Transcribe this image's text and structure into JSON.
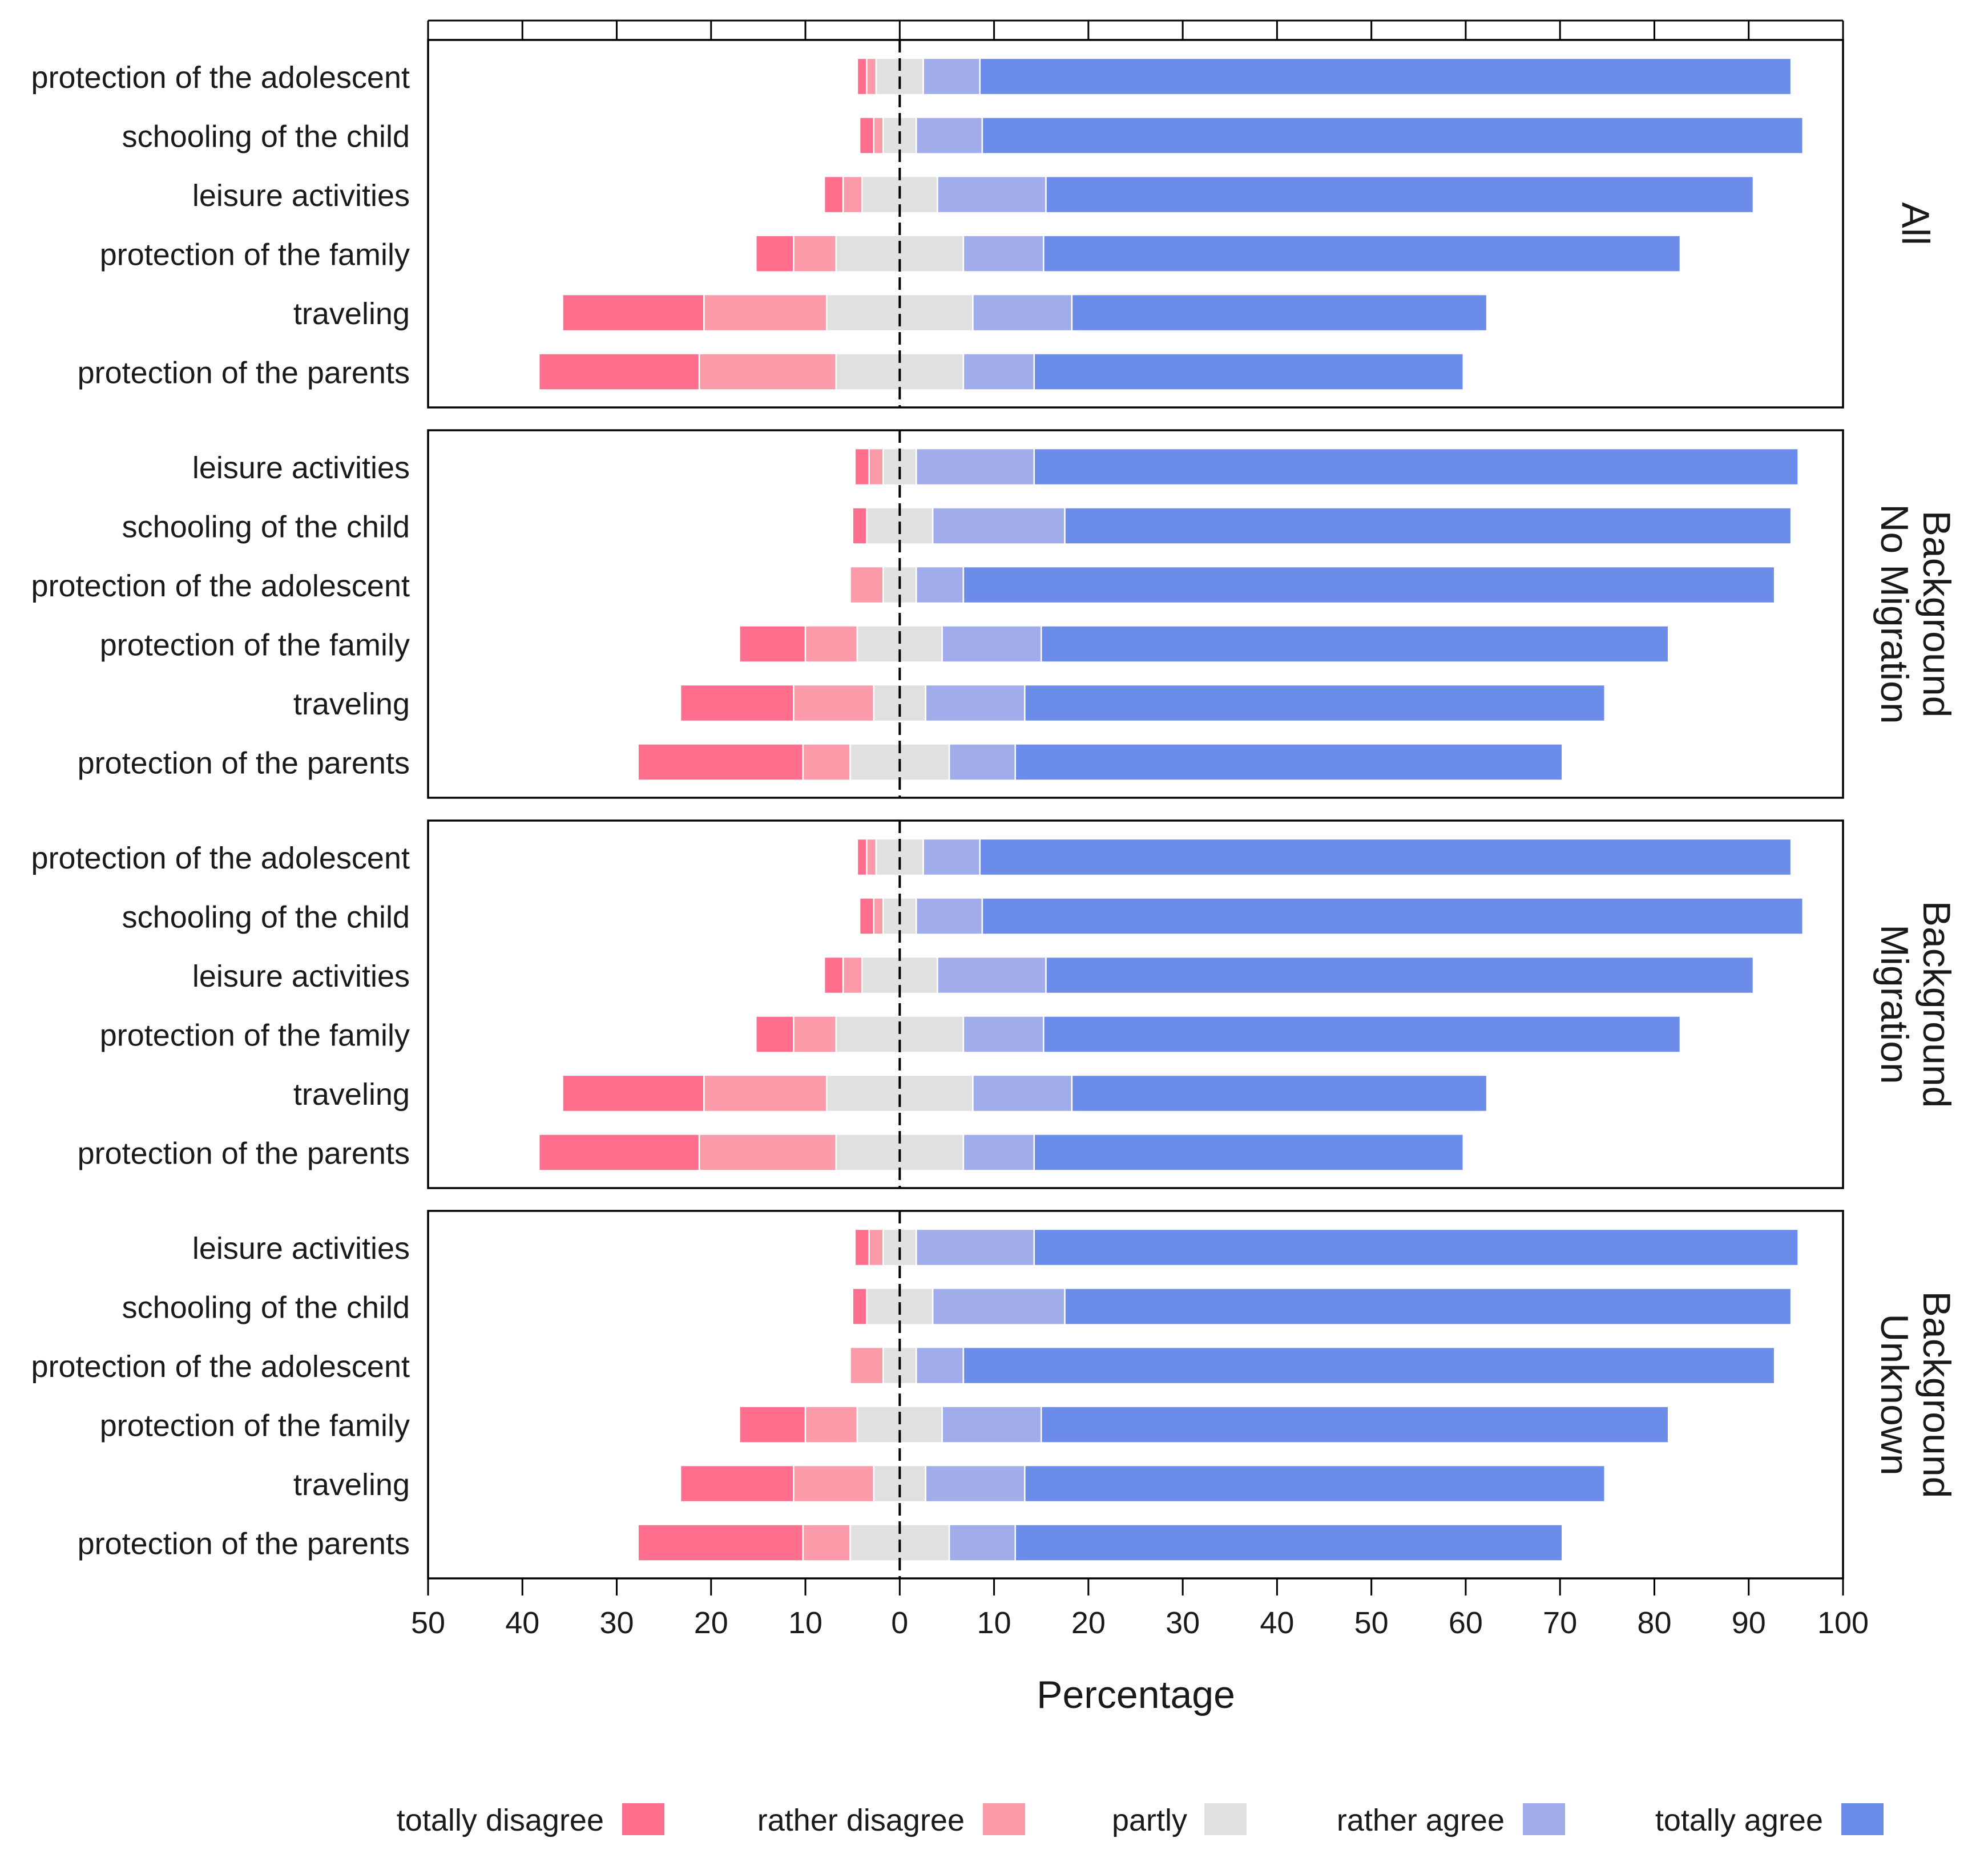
{
  "chart_data": {
    "type": "bar",
    "subtype": "diverging-stacked-horizontal",
    "xlabel": "Percentage",
    "xlim": [
      -50,
      100
    ],
    "xticks": [
      -50,
      -40,
      -30,
      -20,
      -10,
      0,
      10,
      20,
      30,
      40,
      50,
      60,
      70,
      80,
      90,
      100
    ],
    "xtick_labels": [
      "50",
      "40",
      "30",
      "20",
      "10",
      "0",
      "10",
      "20",
      "30",
      "40",
      "50",
      "60",
      "70",
      "80",
      "90",
      "100"
    ],
    "legend_position": "bottom",
    "categories": [
      "totally disagree",
      "rather disagree",
      "partly",
      "rather agree",
      "totally agree"
    ],
    "colors": {
      "totally disagree": "#ff6f8d",
      "rather disagree": "#fb9aa9",
      "partly": "#e0e0e0",
      "rather agree": "#a1adeb",
      "totally agree": "#6c8ce9"
    },
    "panels": [
      {
        "label": "All",
        "rows": [
          {
            "label": "protection of the adolescent",
            "values": [
              1.0,
              1.0,
              5.0,
              6.0,
              86.0
            ]
          },
          {
            "label": "schooling of the child",
            "values": [
              1.5,
              1.0,
              3.5,
              7.0,
              87.0
            ]
          },
          {
            "label": "leisure activities",
            "values": [
              2.0,
              2.0,
              8.0,
              11.5,
              75.0
            ]
          },
          {
            "label": "protection of the family",
            "values": [
              4.0,
              4.5,
              13.5,
              8.5,
              67.5
            ]
          },
          {
            "label": "traveling",
            "values": [
              15.0,
              13.0,
              15.5,
              10.5,
              44.0
            ]
          },
          {
            "label": "protection of the parents",
            "values": [
              17.0,
              14.5,
              13.5,
              7.5,
              45.5
            ]
          }
        ]
      },
      {
        "label": "No Migration Background",
        "rows": [
          {
            "label": "leisure activities",
            "values": [
              1.5,
              1.5,
              3.5,
              12.5,
              81.0
            ]
          },
          {
            "label": "schooling of the child",
            "values": [
              1.5,
              0.0,
              7.0,
              14.0,
              77.0
            ]
          },
          {
            "label": "protection of the adolescent",
            "values": [
              0.0,
              3.5,
              3.5,
              5.0,
              86.0
            ]
          },
          {
            "label": "protection of the family",
            "values": [
              7.0,
              5.5,
              9.0,
              10.5,
              66.5
            ]
          },
          {
            "label": "traveling",
            "values": [
              12.0,
              8.5,
              5.5,
              10.5,
              61.5
            ]
          },
          {
            "label": "protection of the parents",
            "values": [
              17.5,
              5.0,
              10.5,
              7.0,
              58.0
            ]
          }
        ]
      },
      {
        "label": "Migration Background",
        "rows": [
          {
            "label": "protection of the adolescent",
            "values": [
              1.0,
              1.0,
              5.0,
              6.0,
              86.0
            ]
          },
          {
            "label": "schooling of the child",
            "values": [
              1.5,
              1.0,
              3.5,
              7.0,
              87.0
            ]
          },
          {
            "label": "leisure activities",
            "values": [
              2.0,
              2.0,
              8.0,
              11.5,
              75.0
            ]
          },
          {
            "label": "protection of the family",
            "values": [
              4.0,
              4.5,
              13.5,
              8.5,
              67.5
            ]
          },
          {
            "label": "traveling",
            "values": [
              15.0,
              13.0,
              15.5,
              10.5,
              44.0
            ]
          },
          {
            "label": "protection of the parents",
            "values": [
              17.0,
              14.5,
              13.5,
              7.5,
              45.5
            ]
          }
        ]
      },
      {
        "label": "Unknown Background",
        "rows": [
          {
            "label": "leisure activities",
            "values": [
              1.5,
              1.5,
              3.5,
              12.5,
              81.0
            ]
          },
          {
            "label": "schooling of the child",
            "values": [
              1.5,
              0.0,
              7.0,
              14.0,
              77.0
            ]
          },
          {
            "label": "protection of the adolescent",
            "values": [
              0.0,
              3.5,
              3.5,
              5.0,
              86.0
            ]
          },
          {
            "label": "protection of the family",
            "values": [
              7.0,
              5.5,
              9.0,
              10.5,
              66.5
            ]
          },
          {
            "label": "traveling",
            "values": [
              12.0,
              8.5,
              5.5,
              10.5,
              61.5
            ]
          },
          {
            "label": "protection of the parents",
            "values": [
              17.5,
              5.0,
              10.5,
              7.0,
              58.0
            ]
          }
        ]
      }
    ]
  }
}
